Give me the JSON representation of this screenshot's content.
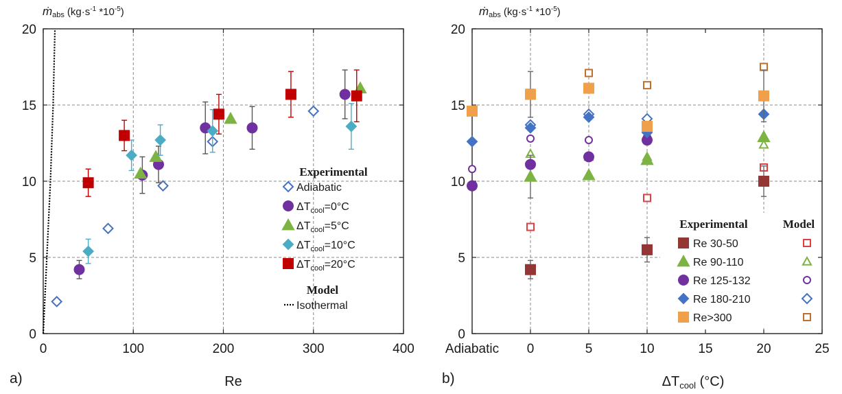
{
  "chart_data": [
    {
      "type": "scatter",
      "panel_label": "a)",
      "ylabel": "ṁ",
      "ylabel_sub": "abs",
      "ylabel_unit": "(kg·s",
      "ylabel_sup": "-1",
      "ylabel_tail": " *10",
      "ylabel_tail_sup": "-5",
      "ylabel_close": ")",
      "xlabel": "Re",
      "xlim": [
        0,
        400
      ],
      "ylim": [
        0,
        20
      ],
      "xticks": [
        "0",
        "100",
        "200",
        "300",
        "400"
      ],
      "yticks": [
        "0",
        "5",
        "10",
        "15",
        "20"
      ],
      "grid": "dashed at 100,200,300 and 5,10,15",
      "legend_position": "bottom-right",
      "legend_headers": [
        "Experimental",
        "Model"
      ],
      "series": [
        {
          "name": "Adiabatic",
          "marker": "diamond-open",
          "color": "#4472c4",
          "points": [
            {
              "x": 15,
              "y": 2.1
            },
            {
              "x": 72,
              "y": 6.9
            },
            {
              "x": 133,
              "y": 9.7
            },
            {
              "x": 188,
              "y": 12.6
            },
            {
              "x": 300,
              "y": 14.6
            }
          ]
        },
        {
          "name": "ΔT",
          "name_sub": "cool",
          "name_tail": "=0°C",
          "marker": "circle",
          "color": "#7030a0",
          "points": [
            {
              "x": 40,
              "y": 4.2,
              "err": 0.6
            },
            {
              "x": 110,
              "y": 10.4,
              "err": 1.2
            },
            {
              "x": 128,
              "y": 11.1,
              "err": 1.2
            },
            {
              "x": 180,
              "y": 13.5,
              "err": 1.7
            },
            {
              "x": 232,
              "y": 13.5,
              "err": 1.4
            },
            {
              "x": 335,
              "y": 15.7,
              "err": 1.6
            }
          ]
        },
        {
          "name": "ΔT",
          "name_sub": "cool",
          "name_tail": "=5°C",
          "marker": "triangle",
          "color": "#7cb342",
          "points": [
            {
              "x": 108,
              "y": 10.5
            },
            {
              "x": 125,
              "y": 11.6
            },
            {
              "x": 208,
              "y": 14.1
            },
            {
              "x": 352,
              "y": 16.1
            }
          ]
        },
        {
          "name": "ΔT",
          "name_sub": "cool",
          "name_tail": "=10°C",
          "marker": "diamond",
          "color": "#4bacc6",
          "points": [
            {
              "x": 50,
              "y": 5.4,
              "err": 0.8
            },
            {
              "x": 98,
              "y": 11.7,
              "err": 1.0
            },
            {
              "x": 130,
              "y": 12.7,
              "err": 1.0
            },
            {
              "x": 188,
              "y": 13.3,
              "err": 1.4
            },
            {
              "x": 342,
              "y": 13.6,
              "err": 1.5
            }
          ]
        },
        {
          "name": "ΔT",
          "name_sub": "cool",
          "name_tail": "=20°C",
          "marker": "square",
          "color": "#c00000",
          "points": [
            {
              "x": 50,
              "y": 9.9,
              "err": 0.9
            },
            {
              "x": 90,
              "y": 13.0,
              "err": 1.0
            },
            {
              "x": 195,
              "y": 14.4,
              "err": 1.3
            },
            {
              "x": 275,
              "y": 15.7,
              "err": 1.5
            },
            {
              "x": 348,
              "y": 15.6,
              "err": 1.7
            }
          ]
        },
        {
          "name": "Isothermal",
          "marker": "dotted-line",
          "color": "#000000",
          "points": [
            {
              "x": 0,
              "y": 0
            },
            {
              "x": 4,
              "y": 5
            },
            {
              "x": 8,
              "y": 10
            },
            {
              "x": 11,
              "y": 15
            },
            {
              "x": 13,
              "y": 20
            }
          ]
        }
      ]
    },
    {
      "type": "scatter",
      "panel_label": "b)",
      "ylabel": "ṁ",
      "ylabel_sub": "abs",
      "ylabel_unit": "(kg·s",
      "ylabel_sup": "-1",
      "ylabel_tail": " *10",
      "ylabel_tail_sup": "-5",
      "ylabel_close": ")",
      "xlabel": "ΔT",
      "xlabel_sub": "cool",
      "xlabel_tail": " (°C)",
      "xlim": [
        -5,
        25
      ],
      "ylim": [
        0,
        20
      ],
      "xticks": [
        "Adiabatic",
        "0",
        "5",
        "10",
        "15",
        "20",
        "25"
      ],
      "yticks": [
        "0",
        "5",
        "10",
        "15",
        "20"
      ],
      "grid": "dashed at 0,5,10,20 and 5,10,15",
      "legend_position": "bottom-right",
      "legend_headers": [
        "Experimental",
        "Model"
      ],
      "series": [
        {
          "name": "Re 30-50",
          "color": "#943634",
          "marker": "square",
          "experimental": [
            {
              "x": 0,
              "y": 4.2,
              "err": 0.6
            },
            {
              "x": 10,
              "y": 5.5,
              "err": 0.8
            },
            {
              "x": 20,
              "y": 10.0,
              "err": 1.0
            }
          ],
          "model": [
            {
              "x": 0,
              "y": 7.0
            },
            {
              "x": 10,
              "y": 8.9
            },
            {
              "x": 20,
              "y": 10.9
            }
          ]
        },
        {
          "name": "Re 90-110",
          "color": "#7cb342",
          "marker": "triangle",
          "experimental": [
            {
              "x": 0,
              "y": 10.3,
              "err": 1.4
            },
            {
              "x": 5,
              "y": 10.4
            },
            {
              "x": 10,
              "y": 11.4
            },
            {
              "x": 20,
              "y": 12.9
            }
          ],
          "model": [
            {
              "x": 0,
              "y": 11.8
            },
            {
              "x": 5,
              "y": 11.6
            },
            {
              "x": 10,
              "y": 11.6
            },
            {
              "x": 20,
              "y": 12.4
            }
          ]
        },
        {
          "name": "Re 125-132",
          "color": "#7030a0",
          "marker": "circle",
          "experimental": [
            {
              "x": -5,
              "y": 9.7
            },
            {
              "x": 0,
              "y": 11.1
            },
            {
              "x": 5,
              "y": 11.6
            },
            {
              "x": 10,
              "y": 12.7
            }
          ],
          "model": [
            {
              "x": -5,
              "y": 10.8
            },
            {
              "x": 0,
              "y": 12.8
            },
            {
              "x": 5,
              "y": 12.7
            },
            {
              "x": 10,
              "y": 12.9
            }
          ]
        },
        {
          "name": "Re 180-210",
          "color": "#4472c4",
          "marker": "diamond",
          "experimental": [
            {
              "x": -5,
              "y": 12.6
            },
            {
              "x": 0,
              "y": 13.5
            },
            {
              "x": 5,
              "y": 14.2
            },
            {
              "x": 10,
              "y": 13.2
            },
            {
              "x": 20,
              "y": 14.4
            }
          ],
          "model": [
            {
              "x": 0,
              "y": 13.7
            },
            {
              "x": 5,
              "y": 14.4
            },
            {
              "x": 10,
              "y": 14.1
            }
          ]
        },
        {
          "name": "Re>300",
          "color": "#f0a04b",
          "marker": "square",
          "experimental": [
            {
              "x": -5,
              "y": 14.6
            },
            {
              "x": 0,
              "y": 15.7,
              "err": 1.5
            },
            {
              "x": 5,
              "y": 16.1
            },
            {
              "x": 10,
              "y": 13.6
            },
            {
              "x": 20,
              "y": 15.6,
              "err": 1.7
            }
          ],
          "model": [
            {
              "x": 0,
              "y": 15.8
            },
            {
              "x": 5,
              "y": 17.1
            },
            {
              "x": 10,
              "y": 16.3
            },
            {
              "x": 20,
              "y": 17.5
            }
          ],
          "model_color": "#c0702a"
        }
      ]
    }
  ]
}
